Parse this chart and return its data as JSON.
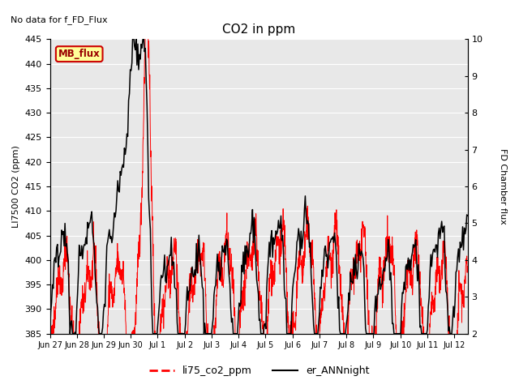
{
  "title": "CO2 in ppm",
  "top_left_text": "No data for f_FD_Flux",
  "ylabel_left": "LI7500 CO2 (ppm)",
  "ylabel_right": "FD Chamber flux",
  "ylim_left": [
    385,
    445
  ],
  "ylim_right": [
    2.0,
    10.0
  ],
  "yticks_left": [
    385,
    390,
    395,
    400,
    405,
    410,
    415,
    420,
    425,
    430,
    435,
    440,
    445
  ],
  "yticks_right": [
    2.0,
    3.0,
    4.0,
    5.0,
    6.0,
    7.0,
    8.0,
    9.0,
    10.0
  ],
  "xtick_labels": [
    "Jun 27",
    "Jun 28",
    "Jun 29",
    "Jun 30",
    "Jul 1",
    "Jul 2",
    "Jul 3",
    "Jul 4",
    "Jul 5",
    "Jul 6",
    "Jul 7",
    "Jul 8",
    "Jul 9",
    "Jul 10",
    "Jul 11",
    "Jul 12"
  ],
  "legend_label_red": "li75_co2_ppm",
  "legend_label_black": "er_ANNnight",
  "inset_label": "MB_flux",
  "color_red": "#FF0000",
  "color_black": "#000000",
  "color_inset_bg": "#FFFF99",
  "color_inset_border": "#CC0000",
  "background_color": "#E8E8E8",
  "grid_color": "#FFFFFF",
  "n_days": 15.5,
  "seed": 42
}
